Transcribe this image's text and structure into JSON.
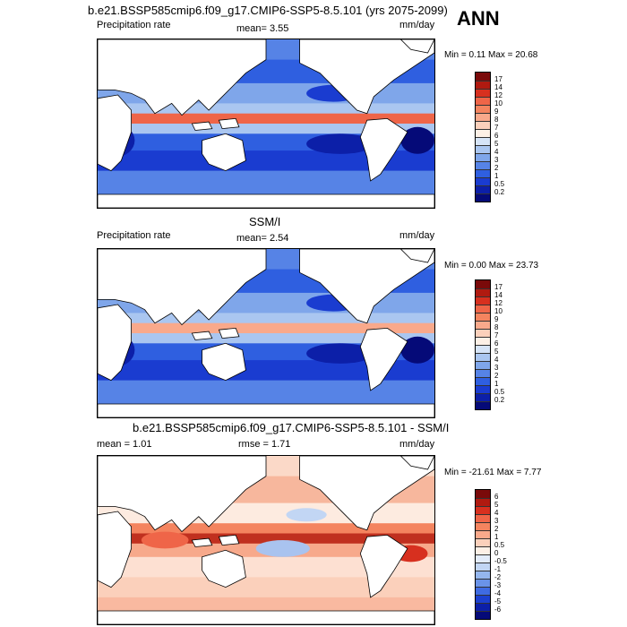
{
  "header": {
    "title": "b.e21.BSSP585cmip6.f09_g17.CMIP6-SSP5-8.5.101 (yrs 2075-2099)",
    "season": "ANN"
  },
  "panels": [
    {
      "title": "",
      "left_label": "Precipitation rate",
      "center_label": "mean=   3.55",
      "right_label": "mm/day",
      "minmax": "Min =   0.11 Max =  20.68"
    },
    {
      "title": "SSM/I",
      "left_label": "Precipitation rate",
      "center_label": "mean=   2.54",
      "right_label": "mm/day",
      "minmax": "Min =   0.00 Max =  23.73"
    },
    {
      "title": "b.e21.BSSP585cmip6.f09_g17.CMIP6-SSP5-8.5.101 - SSM/I",
      "left_label": "mean =    1.01",
      "center_label": "rmse =    1.71",
      "right_label": "mm/day",
      "minmax": "Min = -21.61 Max =   7.77"
    }
  ],
  "chart_data": [
    {
      "type": "heatmap",
      "title": "b.e21.BSSP585cmip6.f09_g17.CMIP6-SSP5-8.5.101 (yrs 2075-2099)",
      "variable": "Precipitation rate",
      "units": "mm/day",
      "mean": 3.55,
      "min": 0.11,
      "max": 20.68,
      "colorbar_levels": [
        "17",
        "14",
        "12",
        "10",
        "9",
        "8",
        "7",
        "6",
        "5",
        "4",
        "3",
        "2",
        "1",
        "0.5",
        "0.2"
      ],
      "colorbar_colors": [
        "#7a0a0a",
        "#b01a10",
        "#d7301f",
        "#ef6548",
        "#f4845f",
        "#f9a98b",
        "#fbd0bb",
        "#fdf0e6",
        "#d6e4f7",
        "#aac6f0",
        "#7fa6ea",
        "#5683e6",
        "#2f5fe0",
        "#1a3cd0",
        "#0c1fa8",
        "#050a78"
      ]
    },
    {
      "type": "heatmap",
      "title": "SSM/I",
      "variable": "Precipitation rate",
      "units": "mm/day",
      "mean": 2.54,
      "min": 0.0,
      "max": 23.73,
      "colorbar_levels": [
        "17",
        "14",
        "12",
        "10",
        "9",
        "8",
        "7",
        "6",
        "5",
        "4",
        "3",
        "2",
        "1",
        "0.5",
        "0.2"
      ],
      "colorbar_colors": [
        "#7a0a0a",
        "#b01a10",
        "#d7301f",
        "#ef6548",
        "#f4845f",
        "#f9a98b",
        "#fbd0bb",
        "#fdf0e6",
        "#d6e4f7",
        "#aac6f0",
        "#7fa6ea",
        "#5683e6",
        "#2f5fe0",
        "#1a3cd0",
        "#0c1fa8",
        "#050a78"
      ]
    },
    {
      "type": "heatmap",
      "title": "b.e21.BSSP585cmip6.f09_g17.CMIP6-SSP5-8.5.101 - SSM/I",
      "units": "mm/day",
      "mean": 1.01,
      "rmse": 1.71,
      "min": -21.61,
      "max": 7.77,
      "colorbar_levels": [
        "6",
        "5",
        "4",
        "3",
        "2",
        "1",
        "0.5",
        "0",
        "-0.5",
        "-1",
        "-2",
        "-3",
        "-4",
        "-5",
        "-6"
      ],
      "colorbar_colors": [
        "#7a0a0a",
        "#b01a10",
        "#d7301f",
        "#ef6548",
        "#f4845f",
        "#f9a98b",
        "#fbd0bb",
        "#fdf0e6",
        "#e3ecfa",
        "#c2d6f4",
        "#94b6ee",
        "#6a93e8",
        "#3f6be2",
        "#1c40cf",
        "#0c1fa8",
        "#050a78"
      ]
    }
  ]
}
